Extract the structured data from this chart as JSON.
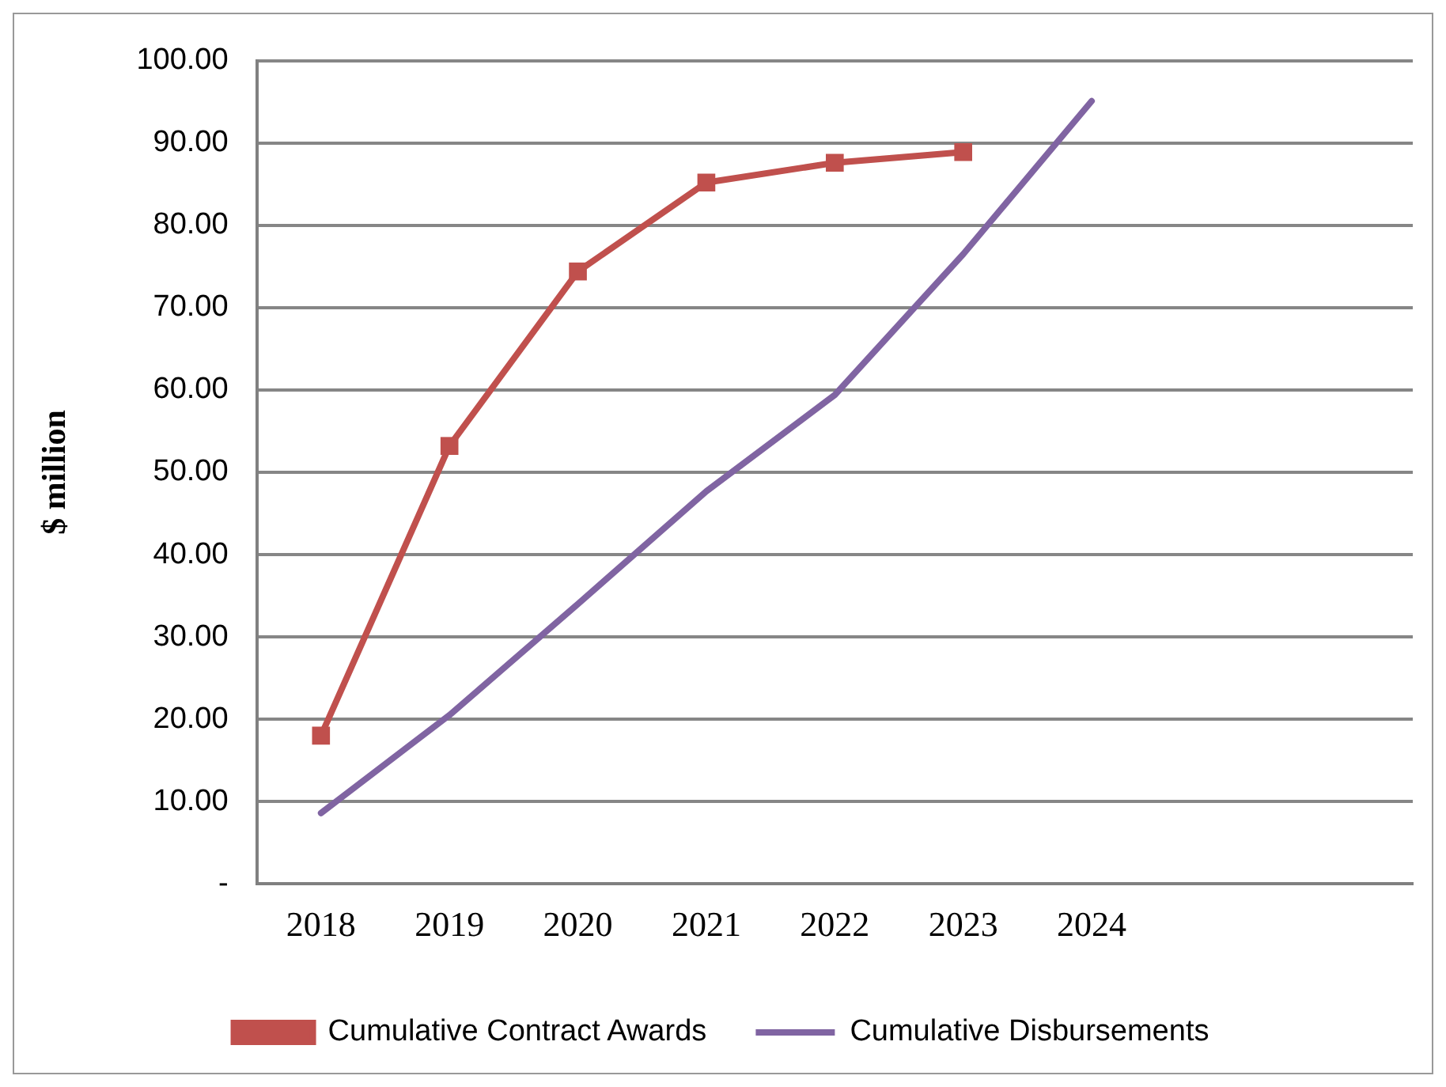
{
  "chart_data": {
    "type": "line",
    "ylabel": "$ million",
    "categories": [
      "2018",
      "2019",
      "2020",
      "2021",
      "2022",
      "2023",
      "2024",
      null,
      null
    ],
    "series": [
      {
        "name": "Cumulative Contract Awards",
        "color": "#c0504d",
        "marker": "square",
        "values": [
          18.0,
          53.2,
          74.4,
          85.2,
          87.6,
          88.9,
          null,
          null,
          null
        ]
      },
      {
        "name": "Cumulative Disbursements",
        "color": "#8064a2",
        "marker": "none",
        "values": [
          8.6,
          20.5,
          34,
          47.7,
          59.4,
          76.5,
          95.1,
          null,
          null
        ]
      }
    ],
    "ylim": [
      0,
      100
    ],
    "yticks": [
      {
        "value": 0,
        "label": "-"
      },
      {
        "value": 10,
        "label": "10.00"
      },
      {
        "value": 20,
        "label": "20.00"
      },
      {
        "value": 30,
        "label": "30.00"
      },
      {
        "value": 40,
        "label": "40.00"
      },
      {
        "value": 50,
        "label": "50.00"
      },
      {
        "value": 60,
        "label": "60.00"
      },
      {
        "value": 70,
        "label": "70.00"
      },
      {
        "value": 80,
        "label": "80.00"
      },
      {
        "value": 90,
        "label": "90.00"
      },
      {
        "value": 100,
        "label": "100.00"
      }
    ],
    "grid": "y",
    "legend": "bottom"
  }
}
